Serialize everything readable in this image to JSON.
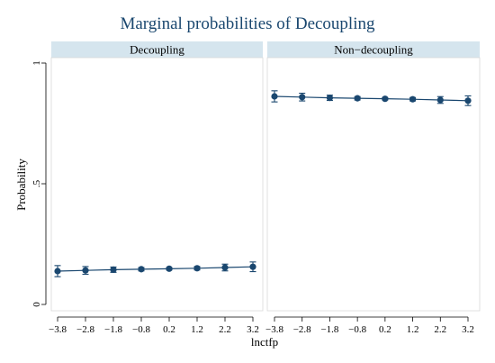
{
  "chart_data": {
    "type": "scatter",
    "title": "Marginal probabilities of Decoupling",
    "xlabel": "lnctfp",
    "ylabel": "Probability",
    "x_ticks": [
      "-3.8",
      "-2.8",
      "-1.8",
      "-0.8",
      "0.2",
      "1.2",
      "2.2",
      "3.2"
    ],
    "y_ticks": [
      "0",
      ".5",
      "1"
    ],
    "ylim": [
      0,
      1
    ],
    "xlim": [
      -3.8,
      3.2
    ],
    "grid": false,
    "color": "#1a476f",
    "panels": [
      {
        "label": "Decoupling",
        "x": [
          -3.8,
          -2.8,
          -1.8,
          -0.8,
          0.2,
          1.2,
          2.2,
          3.2
        ],
        "y": [
          0.138,
          0.141,
          0.144,
          0.146,
          0.148,
          0.15,
          0.153,
          0.156
        ],
        "ci_low": [
          0.115,
          0.125,
          0.133,
          0.139,
          0.143,
          0.143,
          0.139,
          0.136
        ],
        "ci_high": [
          0.161,
          0.157,
          0.155,
          0.153,
          0.153,
          0.157,
          0.167,
          0.176
        ]
      },
      {
        "label": "Non−decoupling",
        "x": [
          -3.8,
          -2.8,
          -1.8,
          -0.8,
          0.2,
          1.2,
          2.2,
          3.2
        ],
        "y": [
          0.862,
          0.859,
          0.856,
          0.854,
          0.852,
          0.85,
          0.847,
          0.844
        ],
        "ci_low": [
          0.839,
          0.843,
          0.845,
          0.847,
          0.847,
          0.843,
          0.833,
          0.824
        ],
        "ci_high": [
          0.885,
          0.875,
          0.867,
          0.861,
          0.857,
          0.857,
          0.861,
          0.864
        ]
      }
    ]
  }
}
